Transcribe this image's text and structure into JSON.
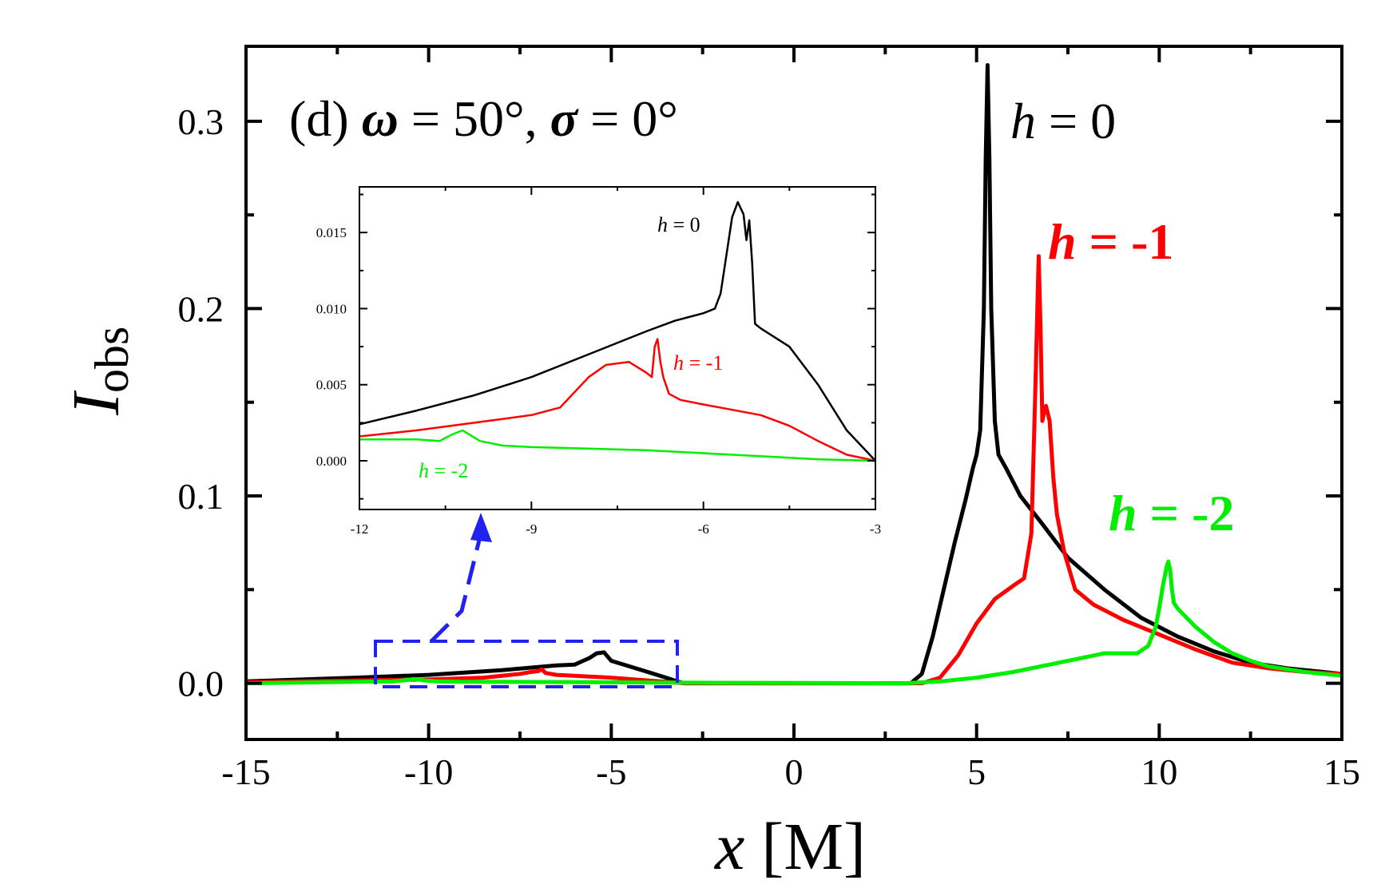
{
  "chart_data": {
    "type": "line",
    "title": "(d) ω = 50°, σ = 0°",
    "title_prefix": "(d) ",
    "title_omega": "ω",
    "title_mid": " = 50°, ",
    "title_sigma": "σ",
    "title_suffix": " = 0°",
    "xlabel_var": "x",
    "xlabel_unit": " [M]",
    "ylabel_var": "I",
    "ylabel_sub": "obs",
    "xlim": [
      -15,
      15
    ],
    "ylim": [
      -0.03,
      0.34
    ],
    "xticks": [
      -15,
      -10,
      -5,
      0,
      5,
      10,
      15
    ],
    "xtick_labels": [
      "-15",
      "-10",
      "-5",
      "0",
      "5",
      "10",
      "15"
    ],
    "yticks": [
      0.0,
      0.1,
      0.2,
      0.3
    ],
    "ytick_labels": [
      "0.0",
      "0.1",
      "0.2",
      "0.3"
    ],
    "series": [
      {
        "name": "h = 0",
        "label_var": "h",
        "label_rest": " = 0",
        "color": "#000000",
        "x": [
          -15,
          -12,
          -10,
          -8,
          -6.5,
          -6,
          -5.6,
          -5.4,
          -5.2,
          -5,
          -4.5,
          -4,
          -3.5,
          -3.2,
          -3,
          2,
          3.2,
          3.5,
          3.8,
          4.1,
          4.4,
          4.7,
          4.9,
          5.0,
          5.1,
          5.2,
          5.25,
          5.3,
          5.35,
          5.4,
          5.5,
          5.6,
          5.8,
          6.2,
          6.8,
          7.5,
          8.5,
          9.5,
          10.5,
          11.5,
          12.5,
          13.5,
          15
        ],
        "y": [
          0.001,
          0.003,
          0.0045,
          0.007,
          0.0095,
          0.01,
          0.0135,
          0.016,
          0.0165,
          0.012,
          0.009,
          0.006,
          0.003,
          0.001,
          0.0,
          0.0,
          0.0,
          0.005,
          0.025,
          0.05,
          0.075,
          0.098,
          0.115,
          0.122,
          0.135,
          0.2,
          0.28,
          0.33,
          0.28,
          0.2,
          0.14,
          0.122,
          0.115,
          0.1,
          0.085,
          0.067,
          0.05,
          0.035,
          0.025,
          0.017,
          0.011,
          0.008,
          0.005
        ]
      },
      {
        "name": "h = -1",
        "label_var": "h",
        "label_rest": " = -1",
        "color": "#ff0000",
        "x": [
          -15,
          -12,
          -10,
          -8.5,
          -7.5,
          -7.2,
          -7,
          -6.9,
          -6.8,
          -6.5,
          -6,
          -5,
          -4,
          -3,
          3.5,
          4,
          4.5,
          5,
          5.5,
          6,
          6.3,
          6.5,
          6.6,
          6.7,
          6.75,
          6.8,
          6.85,
          6.9,
          7.0,
          7.1,
          7.2,
          7.4,
          7.7,
          8.2,
          9,
          10,
          11,
          12,
          13,
          14,
          15
        ],
        "y": [
          0.0005,
          0.0015,
          0.002,
          0.003,
          0.005,
          0.006,
          0.0065,
          0.0075,
          0.0055,
          0.0045,
          0.004,
          0.003,
          0.0015,
          0.0,
          0.0,
          0.003,
          0.015,
          0.032,
          0.045,
          0.052,
          0.056,
          0.08,
          0.15,
          0.228,
          0.19,
          0.14,
          0.145,
          0.148,
          0.14,
          0.11,
          0.09,
          0.07,
          0.05,
          0.042,
          0.034,
          0.026,
          0.018,
          0.011,
          0.008,
          0.006,
          0.005
        ]
      },
      {
        "name": "h = -2",
        "label_var": "h",
        "label_rest": " = -2",
        "color": "#00ee00",
        "x": [
          -15,
          -12,
          -11,
          -10.7,
          -10.4,
          -10.1,
          -9.8,
          -9,
          -7,
          -5,
          -3,
          3,
          4,
          5,
          6,
          7,
          8,
          8.5,
          9,
          9.4,
          9.7,
          9.9,
          10.0,
          10.1,
          10.2,
          10.25,
          10.3,
          10.35,
          10.4,
          10.5,
          10.7,
          11,
          11.5,
          12,
          12.5,
          13,
          14,
          15
        ],
        "y": [
          0.0,
          0.0008,
          0.001,
          0.0015,
          0.0023,
          0.0015,
          0.001,
          0.0008,
          0.0007,
          0.0005,
          0.0003,
          0.0,
          0.001,
          0.003,
          0.006,
          0.01,
          0.014,
          0.016,
          0.016,
          0.016,
          0.02,
          0.03,
          0.04,
          0.052,
          0.062,
          0.065,
          0.06,
          0.05,
          0.043,
          0.04,
          0.036,
          0.03,
          0.022,
          0.016,
          0.012,
          0.009,
          0.006,
          0.004
        ]
      }
    ],
    "inset": {
      "xlim": [
        -12,
        -3
      ],
      "ylim": [
        -0.0032,
        0.018
      ],
      "xticks": [
        -12,
        -9,
        -6,
        -3
      ],
      "xtick_labels": [
        "-12",
        "-9",
        "-6",
        "-3"
      ],
      "yticks": [
        0.0,
        0.005,
        0.01,
        0.015
      ],
      "ytick_labels": [
        "0.000",
        "0.005",
        "0.010",
        "0.015"
      ],
      "series": [
        {
          "name": "h = 0",
          "label_var": "h",
          "label_rest": " = 0",
          "color": "#000000",
          "x": [
            -12,
            -11,
            -10,
            -9,
            -8,
            -7,
            -6.5,
            -6.2,
            -6.0,
            -5.8,
            -5.7,
            -5.6,
            -5.5,
            -5.4,
            -5.3,
            -5.25,
            -5.2,
            -5.15,
            -5.1,
            -5.0,
            -4.5,
            -4.0,
            -3.5,
            -3.0
          ],
          "y": [
            0.0024,
            0.0033,
            0.0043,
            0.0055,
            0.007,
            0.0085,
            0.0092,
            0.0095,
            0.0097,
            0.01,
            0.011,
            0.0135,
            0.016,
            0.017,
            0.0162,
            0.0145,
            0.0158,
            0.013,
            0.009,
            0.0087,
            0.0075,
            0.005,
            0.002,
            0.0
          ]
        },
        {
          "name": "h = -1",
          "label_var": "h",
          "label_rest": " = -1",
          "color": "#ff0000",
          "x": [
            -12,
            -11,
            -10,
            -9,
            -8.5,
            -8.0,
            -7.7,
            -7.3,
            -7.0,
            -6.9,
            -6.85,
            -6.8,
            -6.75,
            -6.7,
            -6.6,
            -6.4,
            -6.0,
            -5.0,
            -4.5,
            -4.0,
            -3.5,
            -3.0
          ],
          "y": [
            0.0016,
            0.002,
            0.0025,
            0.003,
            0.0035,
            0.0055,
            0.0063,
            0.0065,
            0.0058,
            0.0055,
            0.0075,
            0.008,
            0.0065,
            0.0055,
            0.0044,
            0.004,
            0.0037,
            0.003,
            0.0023,
            0.0013,
            0.0004,
            0.0
          ]
        },
        {
          "name": "h = -2",
          "label_var": "h",
          "label_rest": " = -2",
          "color": "#00ee00",
          "x": [
            -12,
            -11,
            -10.6,
            -10.4,
            -10.2,
            -9.9,
            -9.5,
            -9,
            -8,
            -7,
            -6,
            -5,
            -4,
            -3
          ],
          "y": [
            0.0014,
            0.0014,
            0.0013,
            0.0017,
            0.002,
            0.0013,
            0.001,
            0.0009,
            0.0008,
            0.0007,
            0.0005,
            0.0003,
            0.0001,
            0.0
          ]
        }
      ]
    }
  }
}
